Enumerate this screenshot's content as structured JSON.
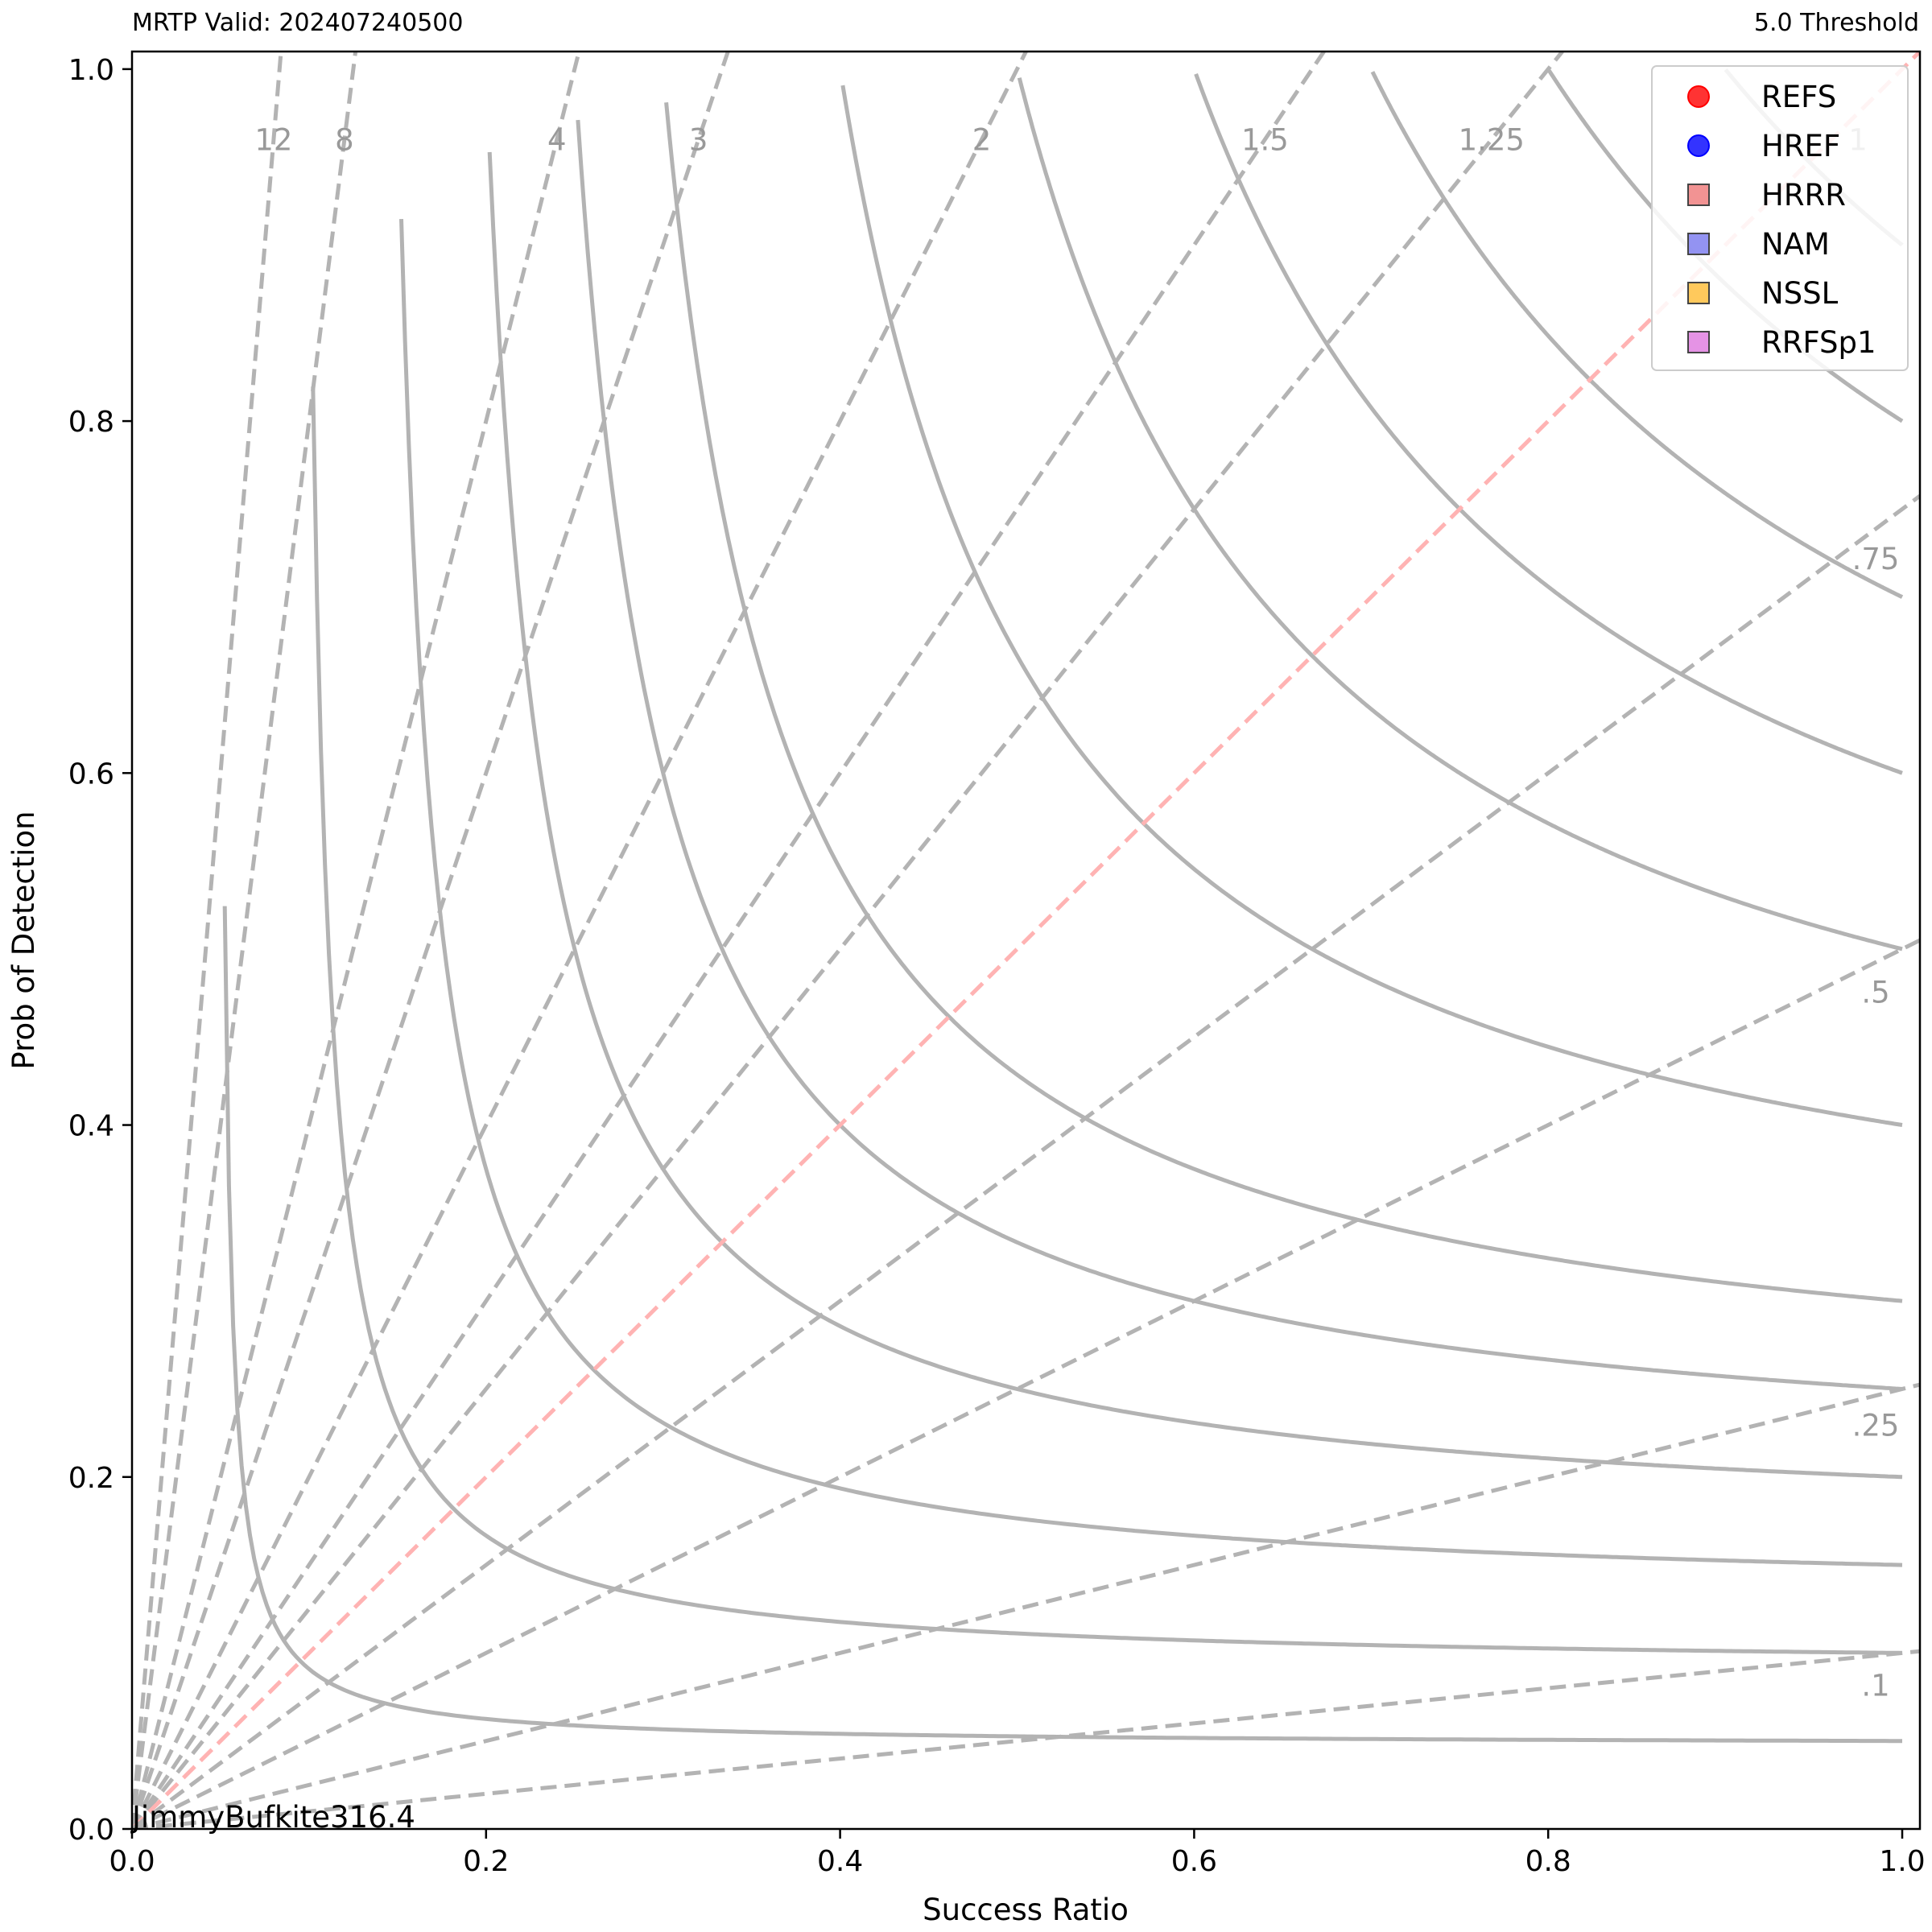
{
  "header": {
    "left": "MRTP Valid: 202407240500",
    "right": "5.0 Threshold"
  },
  "footer": {
    "credit": "JimmyBufkite316.4"
  },
  "chart_data": {
    "type": "scatter",
    "xlabel": "Success Ratio",
    "ylabel": "Prob of Detection",
    "xlim": [
      0,
      1.01
    ],
    "ylim": [
      0,
      1.01
    ],
    "x_ticks": [
      "0.0",
      "0.2",
      "0.4",
      "0.6",
      "0.8",
      "1.0"
    ],
    "y_ticks": [
      "0.0",
      "0.2",
      "0.4",
      "0.6",
      "0.8",
      "1.0"
    ],
    "csi_contours": [
      0.05,
      0.1,
      0.15,
      0.2,
      0.25,
      0.3,
      0.4,
      0.5,
      0.6,
      0.7,
      0.8,
      0.9
    ],
    "bias_lines": [
      {
        "value": 12,
        "label": "12"
      },
      {
        "value": 8,
        "label": "8"
      },
      {
        "value": 4,
        "label": "4"
      },
      {
        "value": 3,
        "label": "3"
      },
      {
        "value": 2,
        "label": "2"
      },
      {
        "value": 1.5,
        "label": "1.5"
      },
      {
        "value": 1.25,
        "label": "1.25"
      },
      {
        "value": 1,
        "label": "1"
      },
      {
        "value": 0.75,
        "label": ".75"
      },
      {
        "value": 0.5,
        "label": ".5"
      },
      {
        "value": 0.25,
        "label": ".25"
      },
      {
        "value": 0.1,
        "label": ".1"
      }
    ],
    "legend": {
      "position": "top-right",
      "entries": [
        {
          "name": "REFS",
          "marker": "circle",
          "color": "#ff0000"
        },
        {
          "name": "HREF",
          "marker": "circle",
          "color": "#0000ff"
        },
        {
          "name": "HRRR",
          "marker": "square",
          "color": "#f08080"
        },
        {
          "name": "NAM",
          "marker": "square",
          "color": "#8080f0"
        },
        {
          "name": "NSSL",
          "marker": "square",
          "color": "#ffc040"
        },
        {
          "name": "RRFSp1",
          "marker": "square",
          "color": "#e080e0"
        }
      ]
    },
    "series": [],
    "colors": {
      "contour": "#b3b3b3",
      "bias_line": "#b3b3b3",
      "unbiased_line": "#ffb3b3",
      "contour_label": "#999999"
    },
    "grid": false
  }
}
